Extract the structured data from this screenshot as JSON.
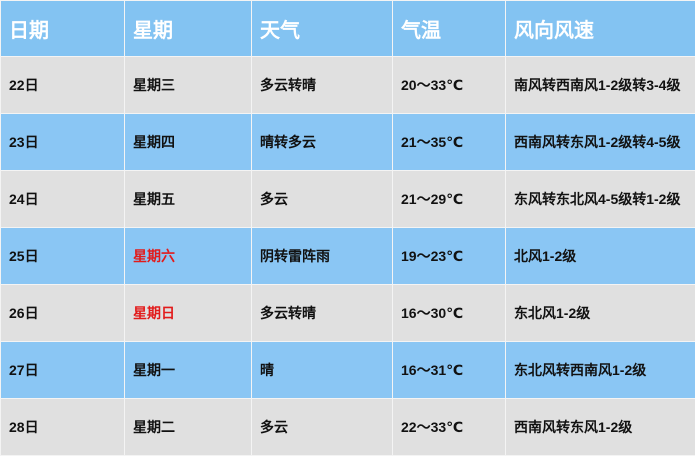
{
  "headers": [
    "日期",
    "星期",
    "天气",
    "气温",
    "风向风速"
  ],
  "rows": [
    {
      "date": "22日",
      "weekday": "星期三",
      "weather": "多云转晴",
      "temp": "20～33℃",
      "wind": "南风转西南风1-2级转3-4级",
      "weekend": false
    },
    {
      "date": "23日",
      "weekday": "星期四",
      "weather": "晴转多云",
      "temp": "21～35℃",
      "wind": "西南风转东风1-2级转4-5级",
      "weekend": false
    },
    {
      "date": "24日",
      "weekday": "星期五",
      "weather": "多云",
      "temp": "21～29℃",
      "wind": "东风转东北风4-5级转1-2级",
      "weekend": false
    },
    {
      "date": "25日",
      "weekday": "星期六",
      "weather": "阴转雷阵雨",
      "temp": "19～23℃",
      "wind": "北风1-2级",
      "weekend": true
    },
    {
      "date": "26日",
      "weekday": "星期日",
      "weather": "多云转晴",
      "temp": "16～30℃",
      "wind": "东北风1-2级",
      "weekend": true
    },
    {
      "date": "27日",
      "weekday": "星期一",
      "weather": "晴",
      "temp": "16～31℃",
      "wind": "东北风转西南风1-2级",
      "weekend": false
    },
    {
      "date": "28日",
      "weekday": "星期二",
      "weather": "多云",
      "temp": "22～33℃",
      "wind": "西南风转东风1-2级",
      "weekend": false
    }
  ],
  "colors": {
    "header": "#83c3f2",
    "row_gray": "#e0e0e0",
    "row_blue": "#8ac6f4",
    "weekend_text": "#e21b1b"
  }
}
